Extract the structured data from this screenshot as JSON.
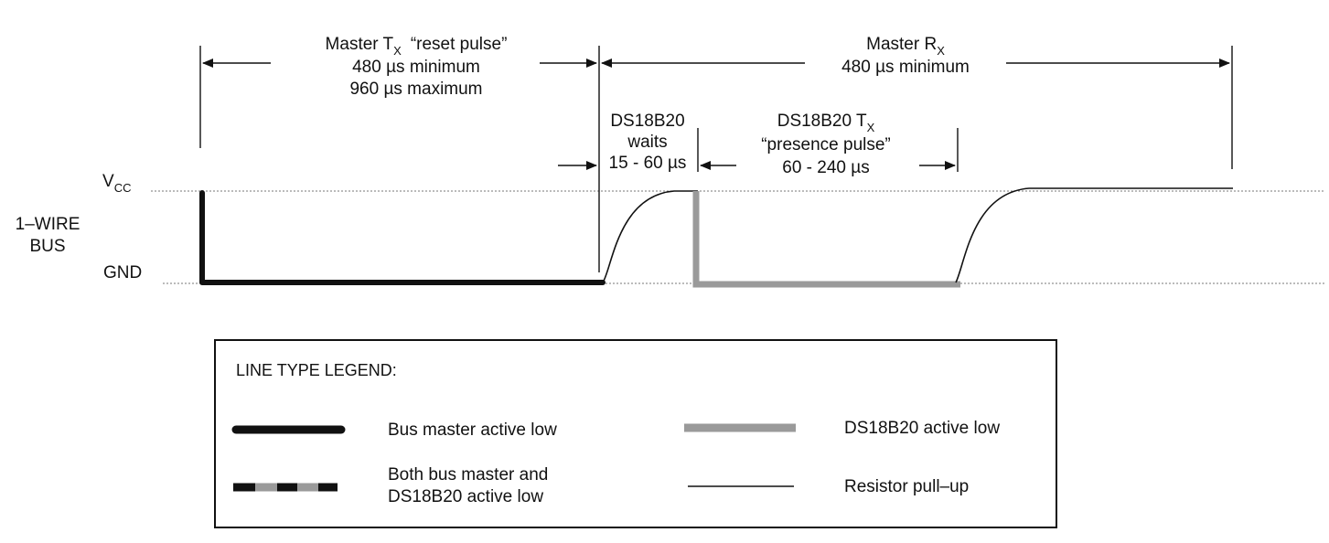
{
  "timing": {
    "master_tx": {
      "name": "Master T",
      "sub": "X",
      "title_rest": "“reset pulse”",
      "line2": "480 µs minimum",
      "line3": "960 µs maximum"
    },
    "master_rx": {
      "name": "Master R",
      "sub": "X",
      "line2": "480 µs minimum"
    },
    "ds_wait": {
      "line1": "DS18B20",
      "line2": "waits",
      "line3": "15 - 60 µs"
    },
    "ds_tx": {
      "name": "DS18B20 T",
      "sub": "X",
      "line2": "“presence pulse”",
      "line3": "60 - 240 µs"
    }
  },
  "levels": {
    "vcc_main": "V",
    "vcc_sub": "CC",
    "gnd": "GND",
    "bus_line1": "1–WIRE",
    "bus_line2": "BUS"
  },
  "legend": {
    "title": "LINE TYPE LEGEND:",
    "items": [
      {
        "label": "Bus master active low",
        "style": "thick-black"
      },
      {
        "label": "DS18B20 active low",
        "style": "thick-gray"
      },
      {
        "label_line1": "Both bus master and",
        "label_line2": "DS18B20 active low",
        "style": "dashed-black-gray"
      },
      {
        "label": "Resistor pull–up",
        "style": "thin-black"
      }
    ]
  },
  "colors": {
    "ink": "#111111",
    "ds_gray": "#9a9a9a",
    "dotted_ref": "#777777"
  }
}
